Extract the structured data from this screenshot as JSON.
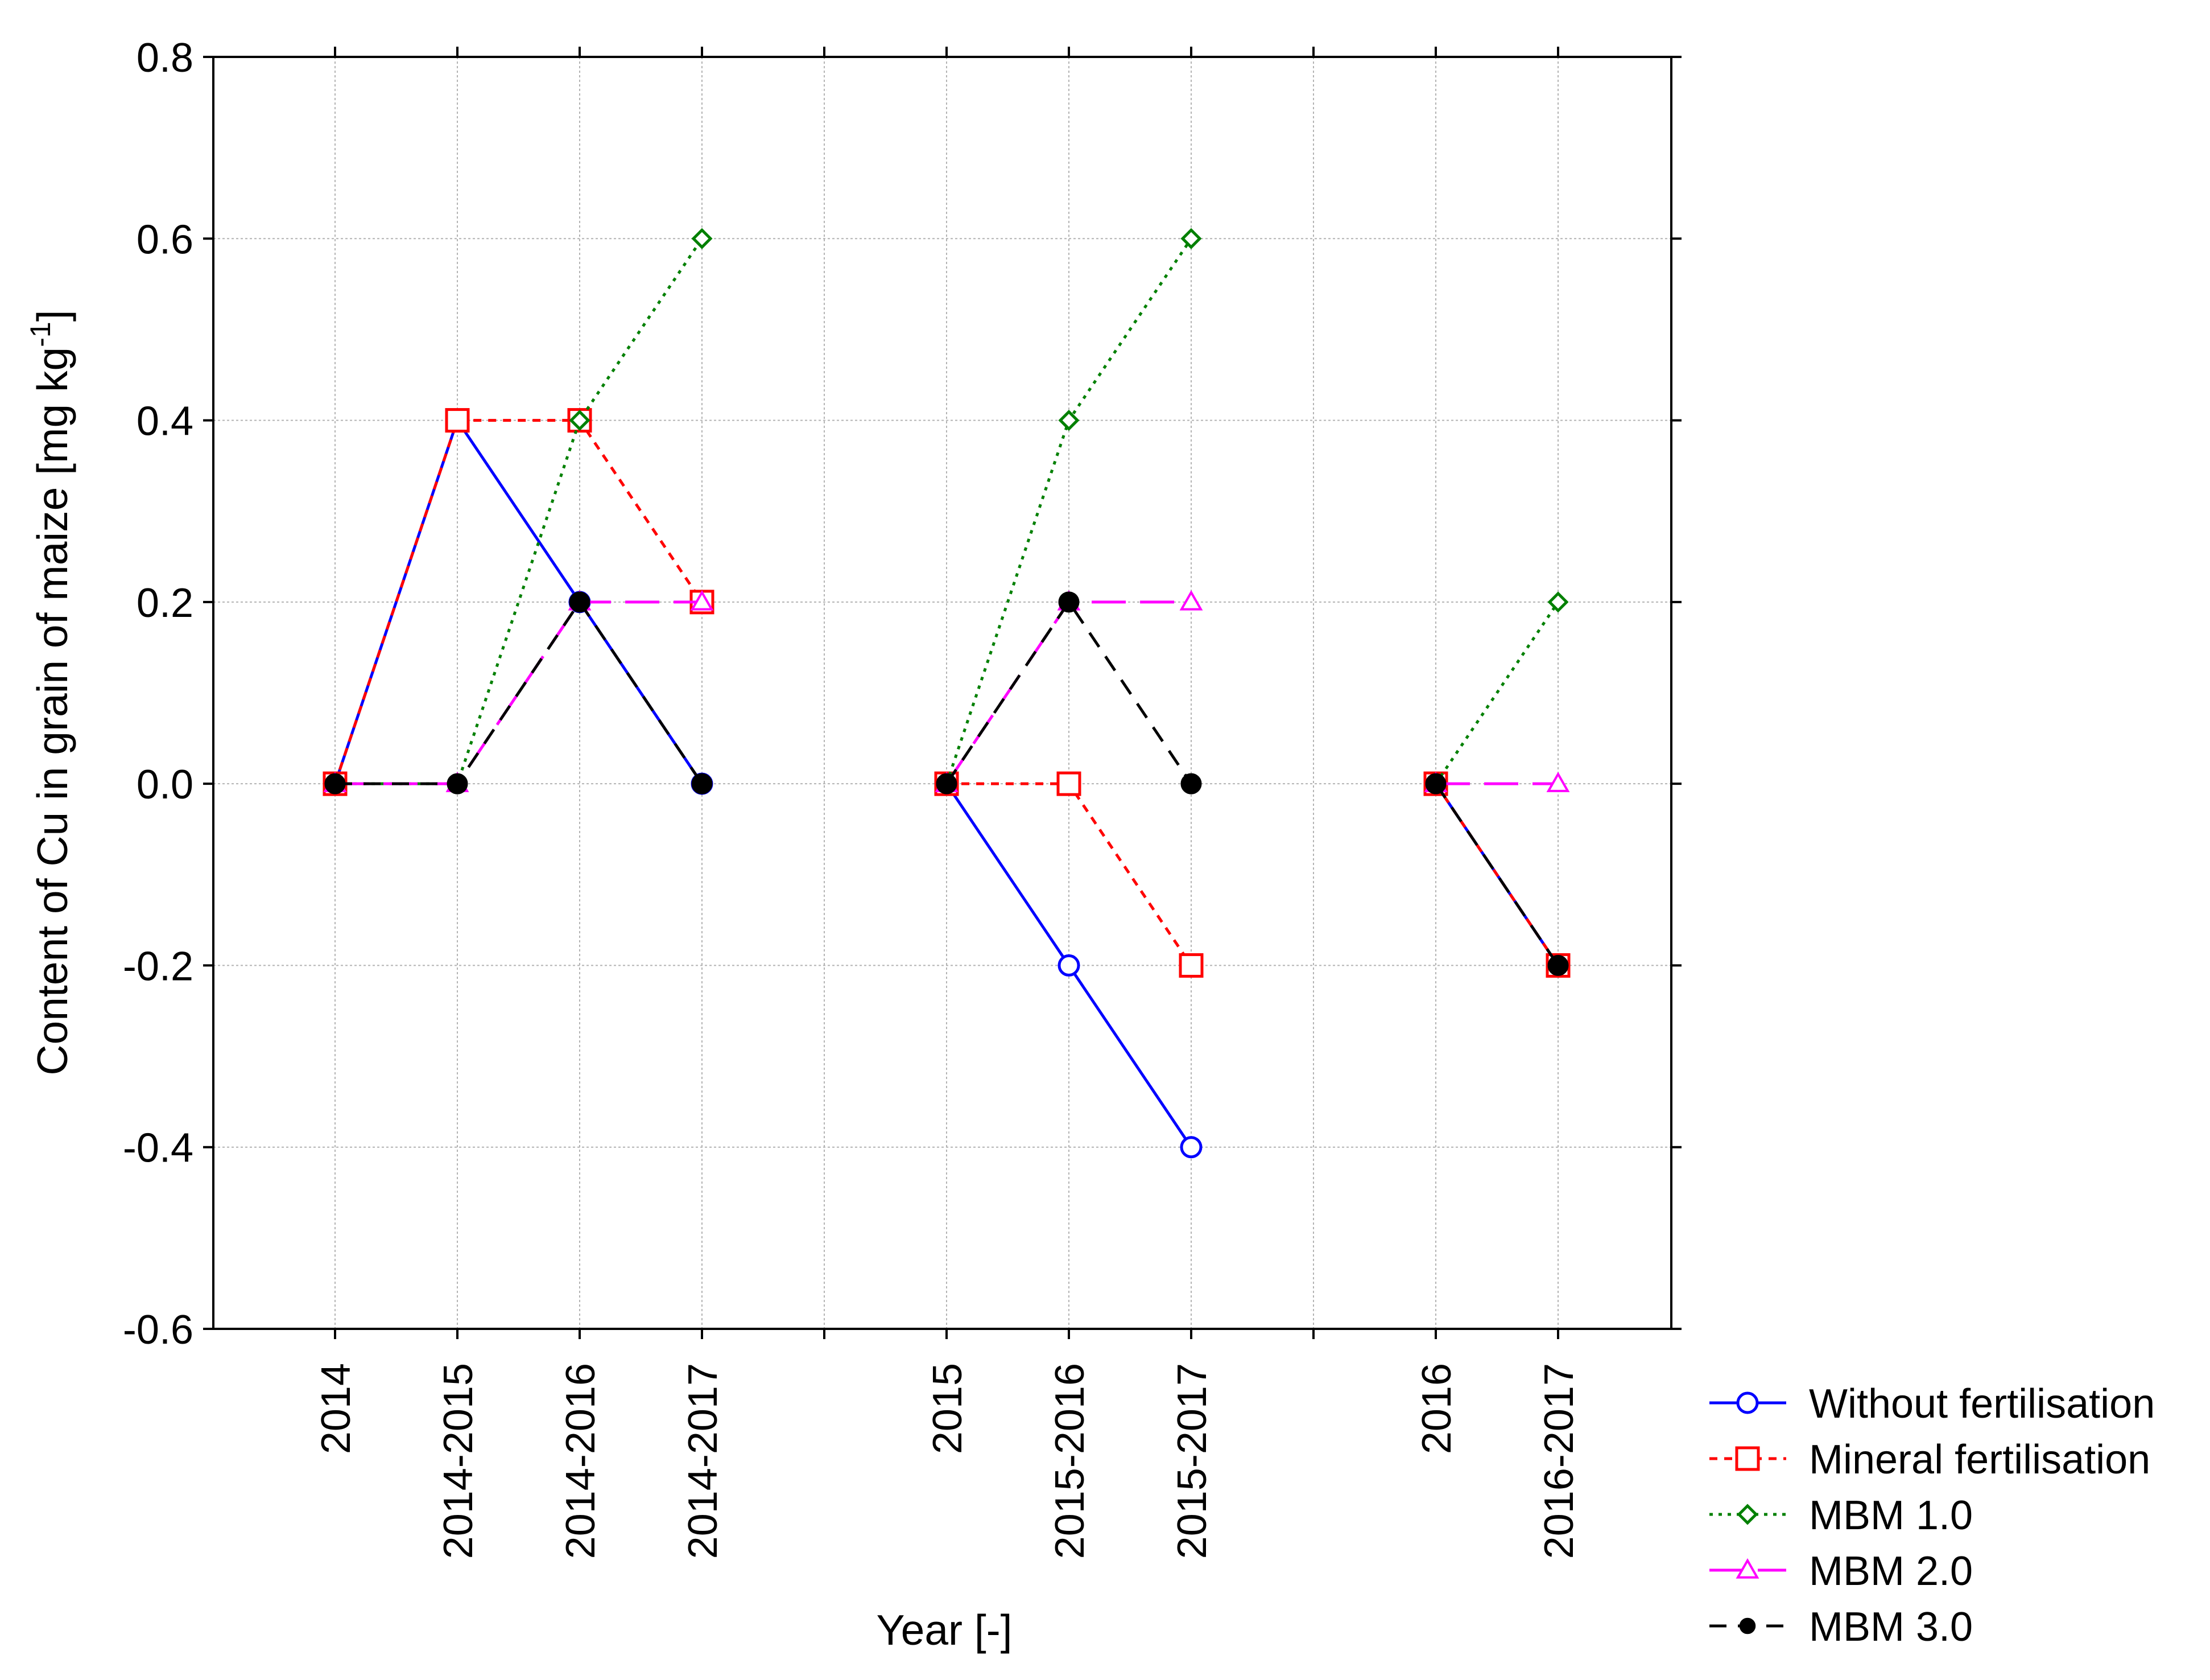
{
  "chart_data": {
    "type": "line",
    "title": "",
    "xlabel": "Year [-]",
    "ylabel_main": "Content of Cu in grain of maize [mg kg",
    "ylabel_sup": "-1",
    "ylabel_close": "]",
    "ylim": [
      -0.6,
      0.8
    ],
    "yticks": [
      "0.8",
      "0.6",
      "0.4",
      "0.2",
      "0.0",
      "-0.2",
      "-0.4",
      "-0.6"
    ],
    "ytick_values": [
      0.8,
      0.6,
      0.4,
      0.2,
      0.0,
      -0.2,
      -0.4,
      -0.6
    ],
    "grid": true,
    "legend_position": "bottom-right outside",
    "categories": [
      "2014",
      "2014-2015",
      "2014-2016",
      "2014-2017",
      "",
      "2015",
      "2015-2016",
      "2015-2017",
      "",
      "2016",
      "2016-2017"
    ],
    "series": [
      {
        "name": "Without fertilisation",
        "color": "#0000ff",
        "dash": "solid",
        "marker": "circle-open",
        "values": [
          0.0,
          0.4,
          0.2,
          0.0,
          null,
          0.0,
          -0.2,
          -0.4,
          null,
          0.0,
          -0.2
        ]
      },
      {
        "name": "Mineral fertilisation",
        "color": "#ff0000",
        "dash": "short-dash",
        "marker": "square-open",
        "values": [
          0.0,
          0.4,
          0.4,
          0.2,
          null,
          0.0,
          0.0,
          -0.2,
          null,
          0.0,
          -0.2
        ]
      },
      {
        "name": "MBM 1.0",
        "color": "#008000",
        "dash": "dotted",
        "marker": "diamond-open",
        "values": [
          0.0,
          0.0,
          0.4,
          0.6,
          null,
          0.0,
          0.4,
          0.6,
          null,
          0.0,
          0.2
        ]
      },
      {
        "name": "MBM 2.0",
        "color": "#ff00ff",
        "dash": "long-dash",
        "marker": "triangle-open",
        "values": [
          0.0,
          0.0,
          0.2,
          0.2,
          null,
          0.0,
          0.2,
          0.2,
          null,
          0.0,
          0.0
        ]
      },
      {
        "name": "MBM 3.0",
        "color": "#000000",
        "dash": "dash",
        "marker": "circle-filled",
        "values": [
          0.0,
          0.0,
          0.2,
          0.0,
          null,
          0.0,
          0.2,
          0.0,
          null,
          0.0,
          -0.2
        ]
      }
    ]
  }
}
